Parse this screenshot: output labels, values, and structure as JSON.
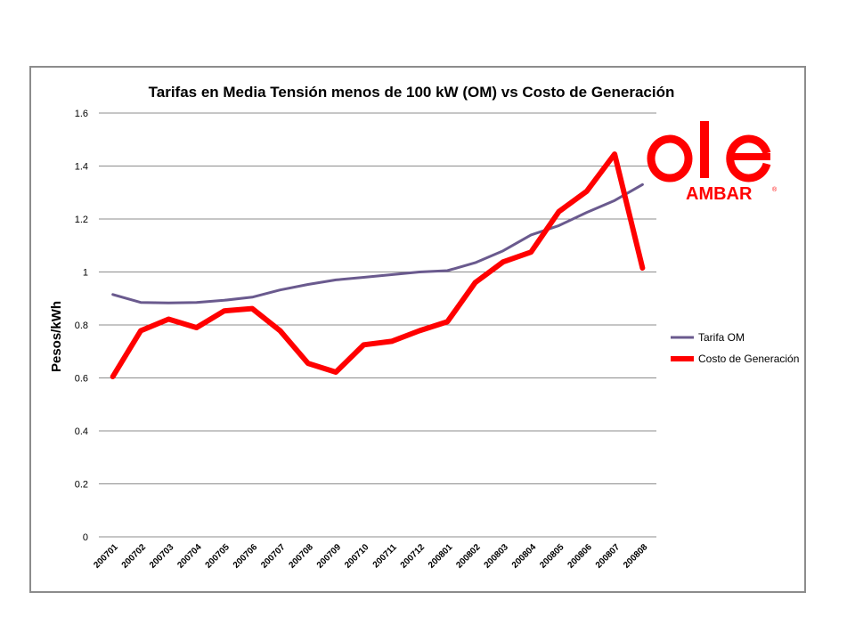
{
  "chart_data": {
    "type": "line",
    "title": "Tarifas en Media Tensión menos de 100 kW  (OM) vs Costo de Generación",
    "xlabel": "",
    "ylabel": "Pesos/kWh",
    "ylim": [
      0,
      1.6
    ],
    "yticks": [
      "0",
      "0.2",
      "0.4",
      "0.6",
      "0.8",
      "1",
      "1.2",
      "1.4",
      "1.6"
    ],
    "grid": true,
    "legend_position": "right",
    "categories": [
      "200701",
      "200702",
      "200703",
      "200704",
      "200705",
      "200706",
      "200707",
      "200708",
      "200709",
      "200710",
      "200711",
      "200712",
      "200801",
      "200802",
      "200803",
      "200804",
      "200805",
      "200806",
      "200807",
      "200808"
    ],
    "series": [
      {
        "name": "Tarifa OM",
        "color": "#6a5a8e",
        "values": [
          0.915,
          0.885,
          0.883,
          0.885,
          0.893,
          0.905,
          0.932,
          0.953,
          0.97,
          0.98,
          0.99,
          1.0,
          1.005,
          1.035,
          1.08,
          1.14,
          1.175,
          1.225,
          1.27,
          1.33
        ]
      },
      {
        "name": "Costo de Generación",
        "color": "#ff0000",
        "values": [
          0.605,
          0.778,
          0.822,
          0.79,
          0.853,
          0.862,
          0.778,
          0.655,
          0.622,
          0.725,
          0.738,
          0.778,
          0.812,
          0.96,
          1.038,
          1.075,
          1.228,
          1.305,
          1.445,
          1.015
        ]
      }
    ]
  },
  "logo": {
    "text": "AMBAR",
    "reg_mark": "®",
    "color": "#ff0000"
  }
}
